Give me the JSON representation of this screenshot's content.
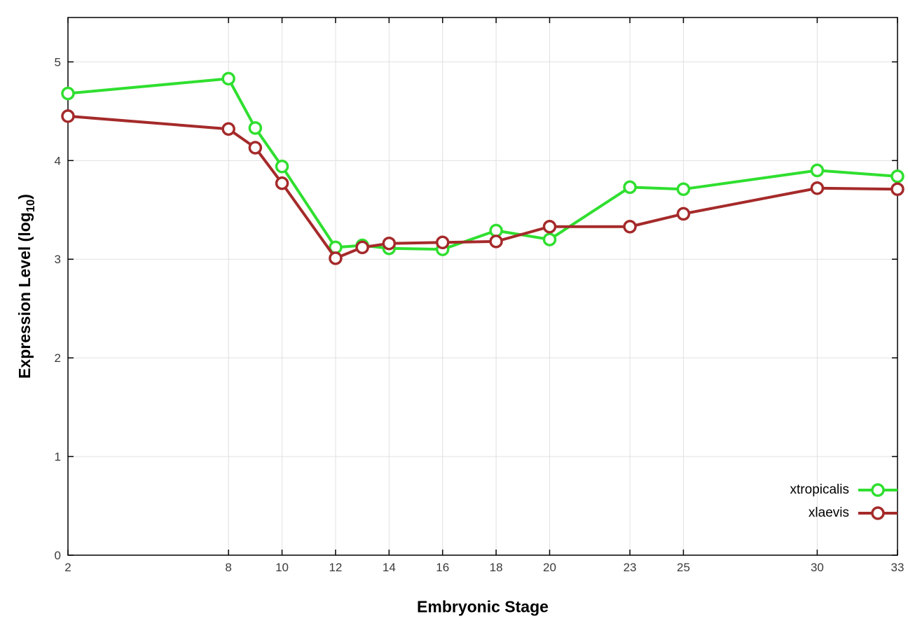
{
  "chart_data": {
    "type": "line",
    "title": "",
    "xlabel": "Embryonic Stage",
    "ylabel": "Expression Level (log10)",
    "ylabel_parts": {
      "prefix": "Expression Level (log",
      "sub": "10",
      "suffix": ")"
    },
    "xlim": [
      2,
      33
    ],
    "ylim": [
      0,
      5.45
    ],
    "xticks": [
      2,
      8,
      10,
      12,
      14,
      16,
      18,
      20,
      23,
      25,
      30,
      33
    ],
    "yticks": [
      0,
      1,
      2,
      3,
      4,
      5
    ],
    "grid": true,
    "legend_position": "inside-bottom-right",
    "x": [
      2,
      8,
      9,
      10,
      12,
      13,
      14,
      16,
      18,
      20,
      23,
      25,
      30,
      33
    ],
    "series": [
      {
        "name": "xtropicalis",
        "color": "#2fdf2f",
        "values": [
          4.68,
          4.83,
          4.33,
          3.94,
          3.12,
          3.14,
          3.11,
          3.1,
          3.29,
          3.2,
          3.73,
          3.71,
          3.9,
          3.84
        ]
      },
      {
        "name": "xlaevis",
        "color": "#a52a2a",
        "values": [
          4.45,
          4.32,
          4.13,
          3.77,
          3.01,
          3.12,
          3.16,
          3.17,
          3.18,
          3.33,
          3.33,
          3.46,
          3.72,
          3.71
        ]
      }
    ]
  },
  "style": {
    "grid_color": "#e0e0e0",
    "border_color": "#000000",
    "tick_label_color": "#3a3a3a",
    "background": "#ffffff"
  }
}
